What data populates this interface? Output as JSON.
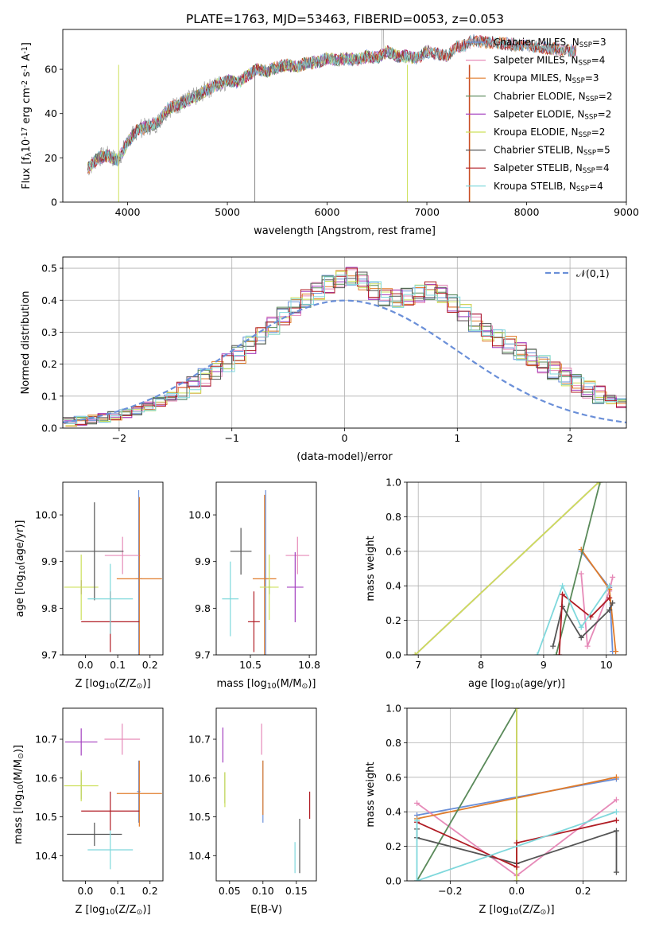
{
  "figure_title": "PLATE=1763, MJD=53463, FIBERID=0053, z=0.053",
  "colors": {
    "chabrier_miles": "#6a8fd8",
    "salpeter_miles": "#e68ab8",
    "kroupa_miles": "#e07b2a",
    "chabrier_elodie": "#5a8a5a",
    "salpeter_elodie": "#a33fbf",
    "kroupa_elodie": "#cde05a",
    "chabrier_stelib": "#555555",
    "salpeter_stelib": "#b01c24",
    "kroupa_stelib": "#7fd8dc"
  },
  "chart_data": [
    {
      "id": "spectrum",
      "type": "line",
      "xlabel": "wavelength [Angstrom, rest frame]",
      "ylabel": "Flux [f$_\\lambda$10$^{-17}$ erg cm$^{-2}$ s$^{-1}$ A$^{-1}$]",
      "xlim": [
        3350,
        9000
      ],
      "ylim": [
        0,
        78
      ],
      "xticks": [
        4000,
        5000,
        6000,
        7000,
        8000,
        9000
      ],
      "yticks": [
        0,
        20,
        40,
        60
      ],
      "grid": false,
      "legend_placement": "right",
      "x": [
        3600,
        3700,
        3800,
        3900,
        4000,
        4100,
        4200,
        4300,
        4400,
        4500,
        4600,
        4700,
        4800,
        4900,
        5000,
        5100,
        5200,
        5300,
        5400,
        5500,
        5600,
        5700,
        5800,
        5900,
        6000,
        6100,
        6200,
        6300,
        6400,
        6500,
        6600,
        6700,
        6800,
        6900,
        7000,
        7100,
        7200,
        7300,
        7400,
        7450
      ],
      "y": [
        15,
        20,
        21,
        19,
        27,
        33,
        34,
        36,
        42,
        44,
        46,
        48,
        51,
        53,
        55,
        54,
        57,
        60,
        59,
        61,
        62,
        61,
        63,
        63,
        65,
        64,
        65,
        64,
        66,
        65,
        68,
        66,
        66,
        65,
        68,
        67,
        66,
        70,
        71,
        73
      ],
      "series": [
        {
          "name": "Chabrier MILES, N$_{SSP}$=3",
          "model_end": 8500
        },
        {
          "name": "Salpeter MILES, N$_{SSP}$=4",
          "model_end": 8500
        },
        {
          "name": "Kroupa MILES, N$_{SSP}$=3",
          "model_end": 8500
        },
        {
          "name": "Chabrier ELODIE, N$_{SSP}$=2",
          "model_end": 7000
        },
        {
          "name": "Salpeter ELODIE, N$_{SSP}$=2",
          "model_end": 7000
        },
        {
          "name": "Kroupa ELODIE, N$_{SSP}$=2",
          "model_end": 7000
        },
        {
          "name": "Chabrier STELIB, N$_{SSP}$=5",
          "model_end": 8500
        },
        {
          "name": "Salpeter STELIB, N$_{SSP}$=4",
          "model_end": 8500
        },
        {
          "name": "Kroupa STELIB, N$_{SSP}$=4",
          "model_end": 8500
        }
      ]
    },
    {
      "id": "residuals",
      "type": "line",
      "xlabel": "(data-model)/error",
      "ylabel": "Normed distribution",
      "xlim": [
        -2.5,
        2.5
      ],
      "ylim": [
        0,
        0.535
      ],
      "xticks": [
        -2,
        -1,
        0,
        1,
        2
      ],
      "yticks": [
        0.0,
        0.1,
        0.2,
        0.3,
        0.4,
        0.5
      ],
      "grid": true,
      "legend_placement": "top-right",
      "legend": "$\\mathcal{N}(0,1)$",
      "bin_width": 0.1,
      "base_hist": [
        0.02,
        0.023,
        0.027,
        0.032,
        0.038,
        0.046,
        0.055,
        0.068,
        0.082,
        0.098,
        0.116,
        0.136,
        0.158,
        0.18,
        0.204,
        0.23,
        0.26,
        0.29,
        0.32,
        0.35,
        0.38,
        0.405,
        0.43,
        0.45,
        0.465,
        0.475,
        0.46,
        0.43,
        0.41,
        0.405,
        0.41,
        0.42,
        0.43,
        0.42,
        0.39,
        0.36,
        0.33,
        0.3,
        0.28,
        0.26,
        0.24,
        0.22,
        0.2,
        0.18,
        0.16,
        0.14,
        0.12,
        0.104,
        0.09,
        0.078,
        0.068,
        0.06,
        0.053,
        0.047,
        0.042,
        0.038,
        0.034,
        0.031,
        0.028,
        0.025
      ]
    },
    {
      "id": "Z-age",
      "type": "scatter",
      "xlabel": "Z [log$_{10}$(Z/Z$_\\odot$)]",
      "ylabel": "age  [log$_{10}$(age/yr)]",
      "xlim": [
        -0.07,
        0.24
      ],
      "ylim": [
        9.7,
        10.07
      ],
      "xticks": [
        0.0,
        0.1,
        0.2
      ],
      "yticks": [
        9.7,
        9.8,
        9.9,
        10.0
      ],
      "grid": false,
      "points": [
        {
          "x": 0.165,
          "y": 9.863,
          "xerr": 0.01,
          "yerr": 0.19
        },
        {
          "x": 0.115,
          "y": 9.913,
          "xerr": 0.055,
          "yerr": 0.04
        },
        {
          "x": 0.167,
          "y": 9.863,
          "xerr": 0.07,
          "yerr": 0.175
        },
        {
          "x": -0.013,
          "y": 9.845,
          "xerr": 0.0,
          "yerr": 0.015
        },
        {
          "x": -0.013,
          "y": 9.845,
          "xerr": 0.0,
          "yerr": 0.015
        },
        {
          "x": -0.013,
          "y": 9.845,
          "xerr": 0.053,
          "yerr": 0.07
        },
        {
          "x": 0.028,
          "y": 9.922,
          "xerr": 0.09,
          "yerr": 0.105
        },
        {
          "x": 0.077,
          "y": 9.771,
          "xerr": 0.09,
          "yerr": 0.065
        },
        {
          "x": 0.077,
          "y": 9.82,
          "xerr": 0.07,
          "yerr": 0.075
        }
      ]
    },
    {
      "id": "mass-age",
      "type": "scatter",
      "xlabel": "mass [log$_{10}$(M/M$_\\odot$)]",
      "ylabel": "",
      "xlim": [
        10.355,
        10.78
      ],
      "ylim": [
        9.7,
        10.07
      ],
      "xticks": [
        10.5,
        10.75
      ],
      "yticks": [
        9.7,
        9.8,
        9.9,
        10.0
      ],
      "grid": false,
      "points": [
        {
          "x": 10.565,
          "y": 9.863,
          "xerr": 0.005,
          "yerr": 0.19
        },
        {
          "x": 10.7,
          "y": 9.913,
          "xerr": 0.05,
          "yerr": 0.04
        },
        {
          "x": 10.56,
          "y": 9.863,
          "xerr": 0.05,
          "yerr": 0.18
        },
        {
          "x": 10.58,
          "y": 9.845,
          "xerr": 0.005,
          "yerr": 0.015
        },
        {
          "x": 10.69,
          "y": 9.845,
          "xerr": 0.035,
          "yerr": 0.075
        },
        {
          "x": 10.58,
          "y": 9.845,
          "xerr": 0.04,
          "yerr": 0.07
        },
        {
          "x": 10.46,
          "y": 9.922,
          "xerr": 0.045,
          "yerr": 0.05
        },
        {
          "x": 10.515,
          "y": 9.771,
          "xerr": 0.025,
          "yerr": 0.065
        },
        {
          "x": 10.415,
          "y": 9.82,
          "xerr": 0.035,
          "yerr": 0.08
        }
      ]
    },
    {
      "id": "age-weight",
      "type": "line",
      "xlabel": "age  [log$_{10}$(age/yr)]",
      "ylabel": "mass weight",
      "xlim": [
        6.82,
        10.32
      ],
      "ylim": [
        0,
        1
      ],
      "xticks": [
        7,
        8,
        9,
        10
      ],
      "yticks": [
        0.0,
        0.2,
        0.4,
        0.6,
        0.8,
        1.0
      ],
      "grid": true,
      "series": [
        {
          "x": [
            9.6,
            10.05,
            10.1
          ],
          "y": [
            0.6,
            0.39,
            0.02
          ]
        },
        {
          "x": [
            9.6,
            9.7,
            10.05,
            10.1
          ],
          "y": [
            0.47,
            0.05,
            0.37,
            0.45
          ]
        },
        {
          "x": [
            9.6,
            10.05,
            10.15
          ],
          "y": [
            0.61,
            0.38,
            0.02
          ]
        },
        {
          "x": [
            9.2,
            9.9
          ],
          "y": [
            0.0,
            1.0
          ]
        },
        {
          "x": [
            6.95,
            9.88
          ],
          "y": [
            0.0,
            1.0
          ]
        },
        {
          "x": [
            6.95,
            9.88
          ],
          "y": [
            0.0,
            1.0
          ]
        },
        {
          "x": [
            9.15,
            9.3,
            9.6,
            10.05,
            10.1
          ],
          "y": [
            0.05,
            0.28,
            0.1,
            0.26,
            0.3
          ]
        },
        {
          "x": [
            9.25,
            9.3,
            9.75,
            10.05
          ],
          "y": [
            0.0,
            0.35,
            0.22,
            0.33
          ]
        },
        {
          "x": [
            8.9,
            9.3,
            9.6,
            10.05
          ],
          "y": [
            0.0,
            0.4,
            0.16,
            0.4
          ]
        }
      ]
    },
    {
      "id": "Z-mass",
      "type": "scatter",
      "xlabel": "Z [log$_{10}$(Z/Z$_\\odot$)]",
      "ylabel": "mass [log$_{10}$(M/M$_\\odot$)]",
      "xlim": [
        -0.07,
        0.24
      ],
      "ylim": [
        10.335,
        10.78
      ],
      "xticks": [
        0.0,
        0.1,
        0.2
      ],
      "yticks": [
        10.4,
        10.5,
        10.6,
        10.7
      ],
      "grid": false,
      "points": [
        {
          "x": 0.165,
          "y": 10.565,
          "xerr": 0.005,
          "yerr": 0.08
        },
        {
          "x": 0.114,
          "y": 10.7,
          "xerr": 0.055,
          "yerr": 0.04
        },
        {
          "x": 0.167,
          "y": 10.56,
          "xerr": 0.07,
          "yerr": 0.085
        },
        {
          "x": -0.013,
          "y": 10.58,
          "xerr": 0.0,
          "yerr": 0.035
        },
        {
          "x": -0.013,
          "y": 10.693,
          "xerr": 0.05,
          "yerr": 0.035
        },
        {
          "x": -0.013,
          "y": 10.58,
          "xerr": 0.053,
          "yerr": 0.04
        },
        {
          "x": 0.028,
          "y": 10.455,
          "xerr": 0.085,
          "yerr": 0.03
        },
        {
          "x": 0.077,
          "y": 10.515,
          "xerr": 0.09,
          "yerr": 0.05
        },
        {
          "x": 0.077,
          "y": 10.415,
          "xerr": 0.07,
          "yerr": 0.05
        }
      ]
    },
    {
      "id": "ebv-mass",
      "type": "scatter",
      "xlabel": "E(B-V)",
      "ylabel": "",
      "xlim": [
        0.03,
        0.18
      ],
      "ylim": [
        10.335,
        10.78
      ],
      "xticks": [
        0.05,
        0.1,
        0.15
      ],
      "yticks": [
        10.4,
        10.5,
        10.6,
        10.7
      ],
      "grid": false,
      "points": [
        {
          "x": 0.1,
          "y": 10.565,
          "xerr": 0.0,
          "yerr": 0.08
        },
        {
          "x": 0.098,
          "y": 10.7,
          "xerr": 0.0,
          "yerr": 0.04
        },
        {
          "x": 0.1,
          "y": 10.575,
          "xerr": 0.0,
          "yerr": 0.07
        },
        {
          "x": 0.043,
          "y": 10.575,
          "xerr": 0.0,
          "yerr": 0.04
        },
        {
          "x": 0.04,
          "y": 10.685,
          "xerr": 0.0,
          "yerr": 0.045
        },
        {
          "x": 0.043,
          "y": 10.57,
          "xerr": 0.0,
          "yerr": 0.045
        },
        {
          "x": 0.155,
          "y": 10.425,
          "xerr": 0.0,
          "yerr": 0.07
        },
        {
          "x": 0.17,
          "y": 10.53,
          "xerr": 0.0,
          "yerr": 0.035
        },
        {
          "x": 0.148,
          "y": 10.395,
          "xerr": 0.0,
          "yerr": 0.04
        }
      ]
    },
    {
      "id": "Z-weight",
      "type": "line",
      "xlabel": "Z [log$_{10}$(Z/Z$_\\odot$)]",
      "ylabel": "mass weight",
      "xlim": [
        -0.33,
        0.33
      ],
      "ylim": [
        0,
        1
      ],
      "xticks": [
        -0.2,
        0.0,
        0.2
      ],
      "yticks": [
        0.0,
        0.2,
        0.4,
        0.6,
        0.8,
        1.0
      ],
      "grid": true,
      "series": [
        {
          "x": [
            -0.3,
            0.3
          ],
          "y": [
            0.38,
            0.59
          ]
        },
        {
          "x": [
            -0.3,
            0.0,
            0.3
          ],
          "y": [
            0.45,
            0.03,
            0.47
          ]
        },
        {
          "x": [
            -0.3,
            0.3
          ],
          "y": [
            0.36,
            0.6
          ]
        },
        {
          "x": [
            -0.3,
            0.0
          ],
          "y": [
            0.0,
            1.0
          ]
        },
        {
          "x": [
            0.0,
            0.0
          ],
          "y": [
            0.0,
            1.0
          ]
        },
        {
          "x": [
            0.0,
            0.0
          ],
          "y": [
            0.0,
            1.0
          ]
        },
        {
          "x": [
            -0.3,
            -0.3,
            0.0,
            0.3,
            0.3
          ],
          "y": [
            0.3,
            0.25,
            0.1,
            0.29,
            0.05
          ]
        },
        {
          "x": [
            -0.3,
            0.0,
            0.0,
            0.3
          ],
          "y": [
            0.34,
            0.08,
            0.22,
            0.35
          ]
        },
        {
          "x": [
            -0.3,
            -0.3,
            0.3
          ],
          "y": [
            0.35,
            0.0,
            0.4
          ]
        }
      ]
    }
  ]
}
